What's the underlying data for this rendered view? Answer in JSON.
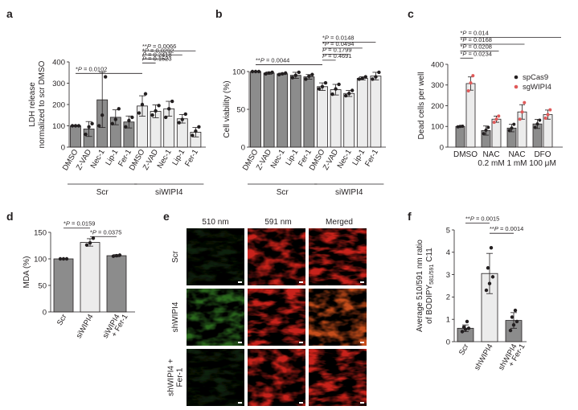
{
  "panels": {
    "a": "a",
    "b": "b",
    "c": "c",
    "d": "d",
    "e": "e",
    "f": "f"
  },
  "colors": {
    "dark": "#8c8c8c",
    "light": "#ececec",
    "scatter": "#231f20",
    "red": "#e05a5a",
    "edge": "#231f20"
  },
  "chart_data": [
    {
      "id": "a",
      "type": "bar",
      "ylabel": [
        "LDH release",
        "normalized to scr DMSO"
      ],
      "ylim": [
        0,
        400
      ],
      "yticks": [
        0,
        100,
        200,
        300,
        400
      ],
      "categories": [
        "DMSO",
        "Z-VAD",
        "Nec-1",
        "Lip-1",
        "Fer-1",
        "DMSO",
        "Z-VAD",
        "Nec-1",
        "Lip-1",
        "Fer-1"
      ],
      "values": [
        100,
        85,
        222,
        140,
        118,
        193,
        168,
        180,
        133,
        70
      ],
      "errors": [
        3,
        35,
        130,
        35,
        28,
        48,
        30,
        35,
        20,
        22
      ],
      "points": [
        [
          100,
          100,
          100
        ],
        [
          60,
          95,
          110
        ],
        [
          100,
          150,
          330
        ],
        [
          110,
          130,
          180
        ],
        [
          95,
          125,
          140
        ],
        [
          160,
          200,
          250
        ],
        [
          150,
          170,
          195
        ],
        [
          140,
          180,
          215
        ],
        [
          115,
          130,
          155
        ],
        [
          55,
          75,
          95
        ]
      ],
      "shade": [
        "dark",
        "dark",
        "dark",
        "dark",
        "dark",
        "light",
        "light",
        "light",
        "light",
        "light"
      ],
      "groups": [
        {
          "label": "Scr",
          "from": 0,
          "to": 4
        },
        {
          "label": "siWIPI4",
          "from": 5,
          "to": 9
        }
      ],
      "comparisons": [
        {
          "from": 0,
          "to": 5,
          "label": "*P = 0.0102",
          "y": 346
        },
        {
          "from": 5,
          "to": 9,
          "label": "**P = 0.0066",
          "y": 452
        },
        {
          "from": 5,
          "to": 8,
          "label": "*P = 0.0292",
          "y": 433
        },
        {
          "from": 5,
          "to": 7,
          "label": "P = 0.2418",
          "y": 414
        },
        {
          "from": 5,
          "to": 6,
          "label": "P = 0.1523",
          "y": 395
        }
      ]
    },
    {
      "id": "b",
      "type": "bar",
      "ylabel": [
        "Cell viability (%)"
      ],
      "ylim": [
        0,
        100
      ],
      "yticks": [
        0,
        50,
        100
      ],
      "categories": [
        "DMSO",
        "Z-VAD",
        "Nec-1",
        "Lip-1",
        "Fer-1",
        "DMSO",
        "Z-VAD",
        "Nec-1",
        "Lip-1",
        "Fer-1"
      ],
      "values": [
        100,
        98,
        97,
        95,
        93,
        80,
        76,
        71,
        91,
        94
      ],
      "errors": [
        0.5,
        1.5,
        1,
        4,
        3,
        5,
        7,
        4,
        2,
        5
      ],
      "points": [
        [
          100,
          100,
          100
        ],
        [
          97,
          98,
          99
        ],
        [
          96,
          97,
          98
        ],
        [
          92,
          95,
          99
        ],
        [
          90,
          94,
          96
        ],
        [
          77,
          80,
          85
        ],
        [
          70,
          77,
          83
        ],
        [
          68,
          71,
          75
        ],
        [
          90,
          91,
          93
        ],
        [
          90,
          93,
          99
        ]
      ],
      "shade": [
        "dark",
        "dark",
        "dark",
        "dark",
        "dark",
        "light",
        "light",
        "light",
        "light",
        "light"
      ],
      "groups": [
        {
          "label": "Scr",
          "from": 0,
          "to": 4
        },
        {
          "label": "siWIPI4",
          "from": 5,
          "to": 9
        }
      ],
      "comparisons": [
        {
          "from": 0,
          "to": 5,
          "label": "**P = 0.0044",
          "y": 109
        },
        {
          "from": 5,
          "to": 9,
          "label": "*P = 0.0148",
          "y": 139
        },
        {
          "from": 5,
          "to": 8,
          "label": "*P = 0.0494",
          "y": 131
        },
        {
          "from": 5,
          "to": 7,
          "label": "P = 0.1799",
          "y": 123
        },
        {
          "from": 5,
          "to": 6,
          "label": "P = 0.4691",
          "y": 115
        }
      ]
    },
    {
      "id": "c",
      "type": "bar",
      "ylabel": [
        "Dead cells per well"
      ],
      "ylim": [
        0,
        400
      ],
      "yticks": [
        0,
        100,
        200,
        300,
        400
      ],
      "categories": [
        "DMSO",
        "NAC 0.2 mM",
        "NAC 1 mM",
        "DFO 100 μM"
      ],
      "category_lines": [
        [
          "DMSO"
        ],
        [
          "NAC",
          "0.2 mM"
        ],
        [
          "NAC",
          "1 mM"
        ],
        [
          "DFO",
          "100 μM"
        ]
      ],
      "series": [
        {
          "name": "spCas9",
          "values": [
            100,
            80,
            92,
            112
          ],
          "errors": [
            2,
            22,
            18,
            22
          ],
          "points": [
            [
              98,
              100,
              101
            ],
            [
              65,
              82,
              95
            ],
            [
              80,
              92,
              110
            ],
            [
              95,
              112,
              130
            ]
          ],
          "color": "dark",
          "dot": "scatter"
        },
        {
          "name": "sgWIPI4",
          "values": [
            307,
            135,
            170,
            157
          ],
          "errors": [
            32,
            15,
            35,
            22
          ],
          "points": [
            [
              272,
              310,
              345
            ],
            [
              120,
              135,
              150
            ],
            [
              135,
              170,
              215
            ],
            [
              140,
              157,
              180
            ]
          ],
          "color": "light",
          "dot": "red"
        }
      ],
      "legend": {
        "position": "right"
      },
      "comparisons": [
        {
          "from": 0,
          "to": 7,
          "label": "*P = 0.014",
          "y": 530
        },
        {
          "from": 0,
          "to": 5,
          "label": "*P = 0.0168",
          "y": 497
        },
        {
          "from": 0,
          "to": 3,
          "label": "*P = 0.0208",
          "y": 464
        },
        {
          "from": 0,
          "to": 1,
          "label": "*P = 0.0234",
          "y": 430
        }
      ]
    },
    {
      "id": "d",
      "type": "bar",
      "ylabel": [
        "MDA (%)"
      ],
      "ylim": [
        0,
        150
      ],
      "yticks": [
        0,
        50,
        100,
        150
      ],
      "categories": [
        "Scr",
        "siWIPI4",
        "siWIPI4 + Fer-1"
      ],
      "category_lines": [
        [
          "Scr"
        ],
        [
          "siWIPI4"
        ],
        [
          "siWIPI4",
          "+ Fer-1"
        ]
      ],
      "values": [
        100,
        131,
        106
      ],
      "errors": [
        0.5,
        7,
        2
      ],
      "points": [
        [
          100,
          100,
          100
        ],
        [
          126,
          130,
          139
        ],
        [
          105,
          106,
          107
        ]
      ],
      "shade": [
        "dark",
        "light",
        "dark"
      ],
      "comparisons": [
        {
          "from": 0,
          "to": 1,
          "label": "*P = 0.0159",
          "y": 158
        },
        {
          "from": 1,
          "to": 2,
          "label": "*P = 0.0375",
          "y": 142
        }
      ]
    },
    {
      "id": "f",
      "type": "bar",
      "ylabel": [
        "Average 510/591 nm ratio",
        "of BODIPY581/591 C11"
      ],
      "ylim": [
        0,
        5
      ],
      "yticks": [
        0,
        1,
        2,
        3,
        4,
        5
      ],
      "categories": [
        "Scr",
        "shWIPI4",
        "shWIPI4 + Fer-1"
      ],
      "category_lines": [
        [
          "Scr"
        ],
        [
          "shWIPI4"
        ],
        [
          "shWIPI4",
          "+ Fer-1"
        ]
      ],
      "values": [
        0.6,
        3.05,
        0.95
      ],
      "errors": [
        0.15,
        0.9,
        0.35
      ],
      "points": [
        [
          0.45,
          0.55,
          0.6,
          0.65,
          0.9
        ],
        [
          2.3,
          2.6,
          2.9,
          3.3,
          4.2
        ],
        [
          0.5,
          0.75,
          0.9,
          1.1,
          1.4
        ]
      ],
      "shade": [
        "dark",
        "light",
        "dark"
      ],
      "comparisons": [
        {
          "from": 0,
          "to": 1,
          "label": "**P = 0.0015",
          "y": 5.3
        },
        {
          "from": 1,
          "to": 2,
          "label": "**P = 0.0014",
          "y": 4.85
        }
      ]
    }
  ],
  "micrographs": {
    "columns": [
      "510 nm",
      "591 nm",
      "Merged"
    ],
    "rows": [
      "Scr",
      "shWIPI4",
      "shWIPI4 + Fer-1"
    ],
    "row_lines": [
      [
        "Scr"
      ],
      [
        "shWIPI4"
      ],
      [
        "shWIPI4 +",
        "Fer-1"
      ]
    ],
    "tints": [
      [
        "#0f200b",
        "#c9221a",
        "#c9221a"
      ],
      [
        "#2c6a1f",
        "#c9221a",
        "#c64d1a"
      ],
      [
        "#0f200b",
        "#c9221a",
        "#c9221a"
      ]
    ]
  }
}
